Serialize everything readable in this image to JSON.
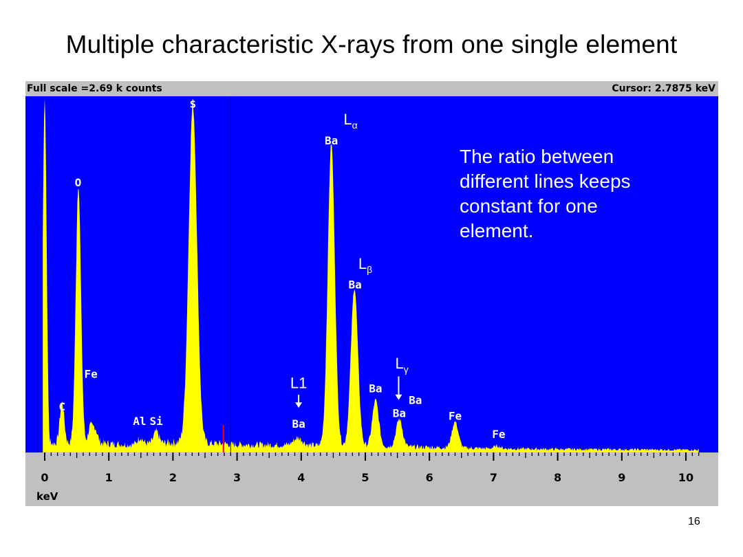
{
  "slide": {
    "title": "Multiple characteristic X-rays from one single element",
    "page_number": "16",
    "annotation": "The ratio between\ndifferent lines keeps\nconstant for one\nelement."
  },
  "header": {
    "full_scale": "Full scale =2.69 k counts",
    "cursor": "Cursor: 2.7875 keV"
  },
  "colors": {
    "plot_background": "#0000ff",
    "spectrum_fill": "#ffff00",
    "panel_gray": "#c0c0c0",
    "cursor_line": "#ff0000",
    "label_text": "#ffffff"
  },
  "chart_data": {
    "type": "area",
    "title": "",
    "xlabel": "keV",
    "ylabel": "",
    "xlim": [
      0,
      10.2
    ],
    "ylim": [
      0,
      2690
    ],
    "x_ticks": [
      "0",
      "1",
      "2",
      "3",
      "4",
      "5",
      "6",
      "7",
      "8",
      "9",
      "10"
    ],
    "cursor_x": 2.7875,
    "divider_x": 2.9,
    "baseline": [
      {
        "x": 0.9,
        "y": 70
      },
      {
        "x": 1.3,
        "y": 60
      },
      {
        "x": 2.2,
        "y": 80
      },
      {
        "x": 3.0,
        "y": 60
      },
      {
        "x": 4.2,
        "y": 55
      },
      {
        "x": 5.0,
        "y": 50
      },
      {
        "x": 6.0,
        "y": 40
      },
      {
        "x": 7.0,
        "y": 30
      },
      {
        "x": 8.0,
        "y": 25
      },
      {
        "x": 10.2,
        "y": 20
      }
    ],
    "peaks": [
      {
        "x": 0.0,
        "y": 2700,
        "w": 0.03
      },
      {
        "x": 0.27,
        "y": 310,
        "w": 0.035
      },
      {
        "x": 0.525,
        "y": 1980,
        "w": 0.04
      },
      {
        "x": 0.705,
        "y": 110,
        "w": 0.03
      },
      {
        "x": 0.78,
        "y": 120,
        "w": 0.04
      },
      {
        "x": 1.49,
        "y": 50,
        "w": 0.04
      },
      {
        "x": 1.74,
        "y": 90,
        "w": 0.04
      },
      {
        "x": 2.31,
        "y": 2580,
        "w": 0.065
      },
      {
        "x": 3.95,
        "y": 55,
        "w": 0.07
      },
      {
        "x": 4.47,
        "y": 2310,
        "w": 0.055
      },
      {
        "x": 4.83,
        "y": 1210,
        "w": 0.055
      },
      {
        "x": 5.16,
        "y": 350,
        "w": 0.05
      },
      {
        "x": 5.53,
        "y": 210,
        "w": 0.05
      },
      {
        "x": 6.4,
        "y": 200,
        "w": 0.05
      },
      {
        "x": 7.06,
        "y": 20,
        "w": 0.05
      }
    ],
    "peak_labels": [
      {
        "text": "C",
        "x": 0.27,
        "y": 320
      },
      {
        "text": "O",
        "x": 0.52,
        "y": 2030
      },
      {
        "text": "Fe",
        "x": 0.72,
        "y": 570
      },
      {
        "text": "Al",
        "x": 1.48,
        "y": 210
      },
      {
        "text": "Si",
        "x": 1.74,
        "y": 210
      },
      {
        "text": "$",
        "x": 2.31,
        "y": 2630
      },
      {
        "text": "Ba",
        "x": 3.96,
        "y": 190
      },
      {
        "text": "Ba",
        "x": 4.47,
        "y": 2350
      },
      {
        "text": "Ba",
        "x": 4.84,
        "y": 1250
      },
      {
        "text": "Ba",
        "x": 5.16,
        "y": 460
      },
      {
        "text": "Ba",
        "x": 5.53,
        "y": 270
      },
      {
        "text": "Ba",
        "x": 5.78,
        "y": 370
      },
      {
        "text": "Fe",
        "x": 6.4,
        "y": 250
      },
      {
        "text": "Fe",
        "x": 7.08,
        "y": 110
      }
    ],
    "line_labels": [
      {
        "text": "L",
        "sub": "α",
        "x": 4.77,
        "y": 2500
      },
      {
        "text": "L",
        "sub": "β",
        "x": 5.0,
        "y": 1400
      },
      {
        "text": "L",
        "sub": "γ",
        "x": 5.57,
        "y": 640
      },
      {
        "text": "L1",
        "x": 3.96,
        "y": 490
      }
    ],
    "arrows": [
      {
        "x": 3.96,
        "y_from": 440,
        "y_to": 340
      },
      {
        "x": 5.52,
        "y_from": 580,
        "y_to": 400
      }
    ]
  }
}
